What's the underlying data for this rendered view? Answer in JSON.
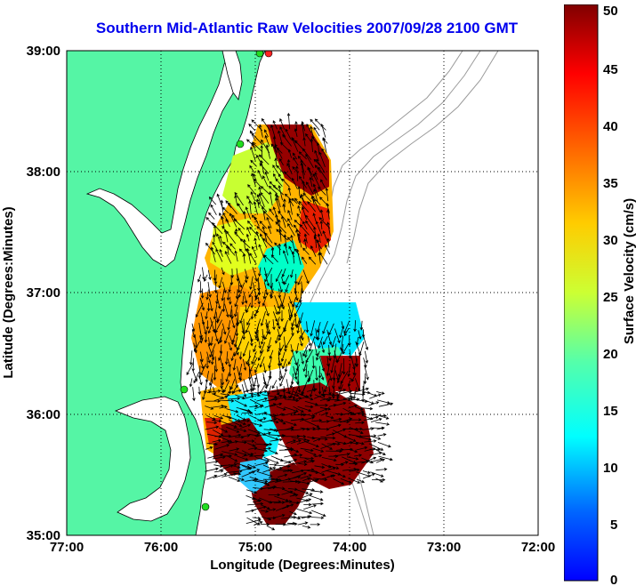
{
  "title": "Southern Mid-Atlantic Raw Velocities 2007/09/28 2100 GMT",
  "xaxis": {
    "label": "Longitude (Degrees:Minutes)",
    "ticks": [
      "77:00",
      "76:00",
      "75:00",
      "74:00",
      "73:00",
      "72:00"
    ]
  },
  "yaxis": {
    "label": "Latitude (Degrees:Minutes)",
    "ticks": [
      "39:00",
      "38:00",
      "37:00",
      "36:00",
      "35:00"
    ]
  },
  "colorbar": {
    "label": "Surface Velocity (cm/s)",
    "ticks": [
      "50",
      "45",
      "40",
      "35",
      "30",
      "25",
      "20",
      "15",
      "10",
      "5",
      "0"
    ],
    "range": [
      0,
      50
    ],
    "colormap": "jet"
  },
  "colors": {
    "title": "#0000ee",
    "land": "#55f5a5",
    "coastline": "#000000",
    "bathymetry": "#9a9a9a",
    "site_markers_green": "#22dd22",
    "site_marker_red": "#ff2222"
  },
  "map": {
    "lon_range": [
      -77,
      -72
    ],
    "lat_range": [
      35,
      39
    ],
    "grid": true
  }
}
